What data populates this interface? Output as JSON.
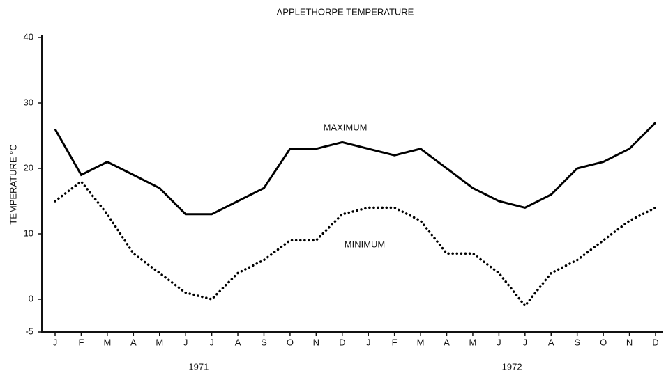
{
  "chart_data": {
    "type": "line",
    "title": "APPLETHORPE TEMPERATURE",
    "y_label": "TEMPERATURE °C",
    "categories": [
      "J",
      "F",
      "M",
      "A",
      "M",
      "J",
      "J",
      "A",
      "S",
      "O",
      "N",
      "D",
      "J",
      "F",
      "M",
      "A",
      "M",
      "J",
      "J",
      "A",
      "S",
      "O",
      "N",
      "D"
    ],
    "year_labels": [
      "1971",
      "1972"
    ],
    "series": [
      {
        "name": "MAXIMUM",
        "color": "#000000",
        "style": "solid",
        "values": [
          26,
          19,
          21,
          19,
          17,
          13,
          13,
          15,
          17,
          23,
          23,
          24,
          23,
          22,
          23,
          20,
          17,
          15,
          14,
          16,
          20,
          21,
          23,
          27
        ]
      },
      {
        "name": "MINIMUM",
        "color": "#000000",
        "style": "dotted",
        "values": [
          15,
          18,
          13,
          7,
          4,
          1,
          0,
          4,
          6,
          9,
          9,
          13,
          14,
          14,
          12,
          7,
          7,
          4,
          -1,
          4,
          6,
          9,
          12,
          14
        ]
      }
    ],
    "ylim": [
      -5,
      40
    ],
    "yticks": [
      40,
      30,
      20,
      10,
      0,
      -5
    ],
    "grid": false
  }
}
